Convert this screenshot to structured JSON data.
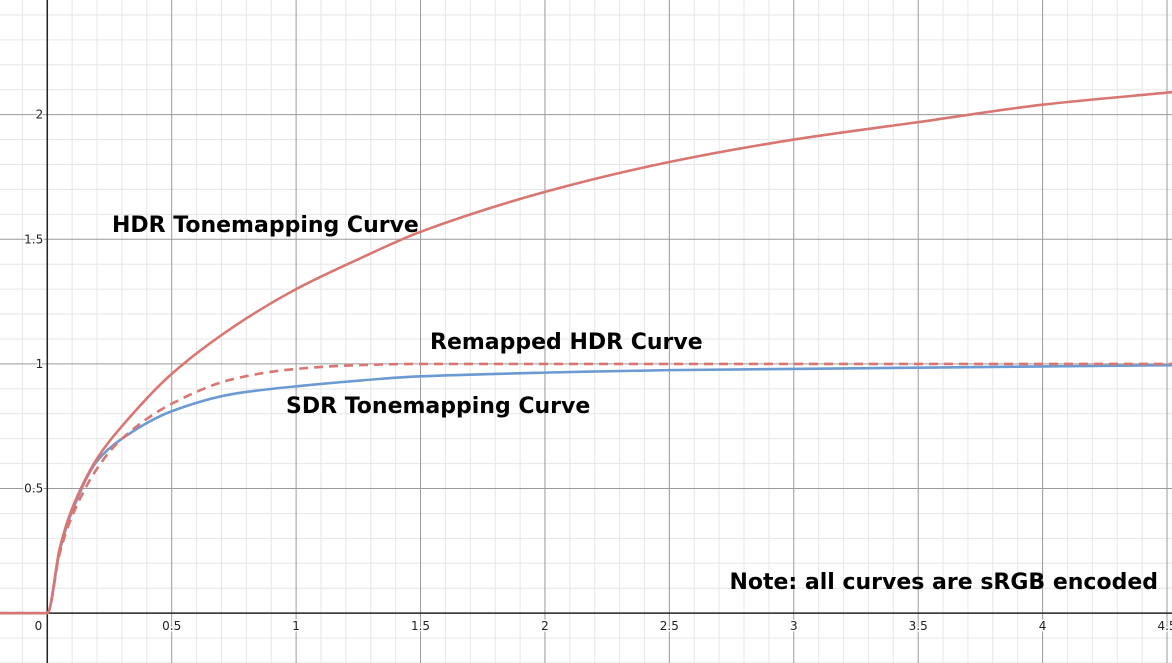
{
  "chart_data": {
    "type": "line",
    "title": "",
    "xlabel": "",
    "ylabel": "",
    "xlim": [
      -0.19,
      4.52
    ],
    "ylim": [
      -0.2,
      2.46
    ],
    "grid": true,
    "x_ticks": [
      "0.5",
      "1",
      "1.5",
      "2",
      "2.5",
      "3",
      "3.5",
      "4",
      "4.5"
    ],
    "y_ticks": [
      "0.5",
      "1",
      "1.5",
      "2"
    ],
    "origin_label": "0",
    "annotations": {
      "hdr": "HDR Tonemapping Curve",
      "remapped": "Remapped HDR Curve",
      "sdr": "SDR Tonemapping Curve",
      "note": "Note: all curves are sRGB encoded"
    },
    "colors": {
      "hdr": "#d97672",
      "remapped": "#d97672",
      "sdr": "#6b9bd2"
    },
    "series": [
      {
        "key": "hdr",
        "style": "solid",
        "x": [
          -0.19,
          0,
          0.05,
          0.1,
          0.2,
          0.3,
          0.5,
          0.75,
          1,
          1.25,
          1.5,
          2,
          2.5,
          3,
          3.5,
          4,
          4.52
        ],
        "y": [
          0,
          0,
          0.26,
          0.42,
          0.62,
          0.75,
          0.96,
          1.15,
          1.3,
          1.42,
          1.53,
          1.69,
          1.81,
          1.9,
          1.97,
          2.04,
          2.09
        ]
      },
      {
        "key": "remapped",
        "style": "dashed",
        "x": [
          -0.19,
          0,
          0.05,
          0.1,
          0.2,
          0.3,
          0.5,
          0.75,
          1,
          1.25,
          1.5,
          2,
          3,
          4,
          4.52
        ],
        "y": [
          0,
          0,
          0.24,
          0.39,
          0.58,
          0.7,
          0.84,
          0.94,
          0.98,
          0.995,
          1.0,
          1.0,
          1.0,
          1.0,
          1.0
        ]
      },
      {
        "key": "sdr",
        "style": "solid",
        "x": [
          -0.19,
          0,
          0.05,
          0.1,
          0.2,
          0.3,
          0.5,
          0.75,
          1,
          1.5,
          2,
          2.5,
          3,
          3.5,
          4,
          4.52
        ],
        "y": [
          0,
          0,
          0.25,
          0.41,
          0.61,
          0.7,
          0.81,
          0.88,
          0.91,
          0.95,
          0.965,
          0.975,
          0.98,
          0.985,
          0.99,
          0.995
        ]
      }
    ]
  }
}
